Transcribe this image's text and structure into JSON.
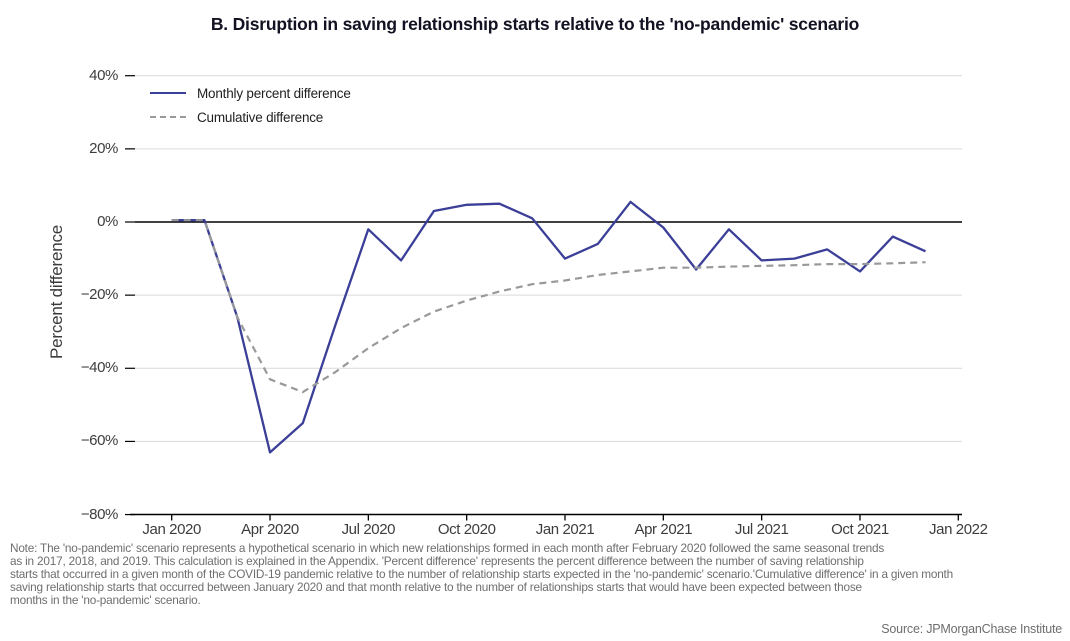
{
  "title": "B. Disruption in saving relationship starts relative to the 'no-pandemic' scenario",
  "y_axis_title": "Percent difference",
  "legend": {
    "monthly_label": "Monthly percent difference",
    "cumulative_label": "Cumulative difference"
  },
  "note": "Note: The 'no-pandemic' scenario represents a hypothetical scenario in which new relationships formed in each month after February 2020 followed the same seasonal trends\nas in 2017, 2018, and 2019. This calculation is explained in the Appendix. 'Percent difference' represents the percent difference between the number of saving relationship\nstarts that occurred in a given month of the COVID-19 pandemic relative to the number of relationship starts expected in the 'no-pandemic' scenario.'Cumulative difference' in a given month\nsaving relationship starts that occurred between January 2020 and that month relative to the number of relationships starts that would have been expected between those\nmonths in the 'no-pandemic' scenario.",
  "source": "Source: JPMorganChase Institute",
  "colors": {
    "monthly_line": "#3b3f97",
    "cumulative_line": "#999999",
    "zero_line": "#000000",
    "axis_line": "#000000",
    "grid_line": "#d9d9d9",
    "axis_text": "#3d3d3d",
    "note_text": "#6e6e6e"
  },
  "chart_data": {
    "type": "line",
    "x": [
      "Jan 2020",
      "Feb 2020",
      "Mar 2020",
      "Apr 2020",
      "May 2020",
      "Jun 2020",
      "Jul 2020",
      "Aug 2020",
      "Sep 2020",
      "Oct 2020",
      "Nov 2020",
      "Dec 2020",
      "Jan 2021",
      "Feb 2021",
      "Mar 2021",
      "Apr 2021",
      "May 2021",
      "Jun 2021",
      "Jul 2021",
      "Aug 2021",
      "Sep 2021",
      "Oct 2021",
      "Nov 2021",
      "Dec 2021"
    ],
    "series": [
      {
        "name": "Monthly percent difference",
        "style": "solid",
        "color": "#3b3f97",
        "width": 2.3,
        "values": [
          0.5,
          0.5,
          -26,
          -63,
          -55,
          -28,
          -2,
          -10.5,
          3,
          4.7,
          5,
          1,
          -10,
          -6,
          5.5,
          -1.5,
          -13,
          -2,
          -10.5,
          -10,
          -7.5,
          -13.5,
          -4,
          -8
        ]
      },
      {
        "name": "Cumulative difference",
        "style": "dashed",
        "color": "#999999",
        "width": 2.2,
        "values": [
          0.5,
          0.5,
          -26,
          -43,
          -46.5,
          -41,
          -34.5,
          -29,
          -24.5,
          -21.5,
          -19,
          -17,
          -16,
          -14.5,
          -13.5,
          -12.5,
          -12.5,
          -12.2,
          -12,
          -11.8,
          -11.5,
          -11.5,
          -11.3,
          -11
        ]
      }
    ],
    "x_ticks": [
      {
        "label": "Jan 2020",
        "month_index": 0
      },
      {
        "label": "Apr 2020",
        "month_index": 3
      },
      {
        "label": "Jul 2020",
        "month_index": 6
      },
      {
        "label": "Oct 2020",
        "month_index": 9
      },
      {
        "label": "Jan 2021",
        "month_index": 12
      },
      {
        "label": "Apr 2021",
        "month_index": 15
      },
      {
        "label": "Jul 2021",
        "month_index": 18
      },
      {
        "label": "Oct 2021",
        "month_index": 21
      },
      {
        "label": "Jan 2022",
        "month_index": 24
      }
    ],
    "y_ticks": [
      {
        "label": "40%",
        "value": 40
      },
      {
        "label": "20%",
        "value": 20
      },
      {
        "label": "0%",
        "value": 0
      },
      {
        "label": "−20%",
        "value": -20
      },
      {
        "label": "−40%",
        "value": -40
      },
      {
        "label": "−60%",
        "value": -60
      },
      {
        "label": "−80%",
        "value": -80
      }
    ],
    "ylim": [
      -80,
      40
    ],
    "ylabel": "Percent difference",
    "grid": "horizontal",
    "zero_reference_line": true,
    "legend_position": "top-left"
  }
}
